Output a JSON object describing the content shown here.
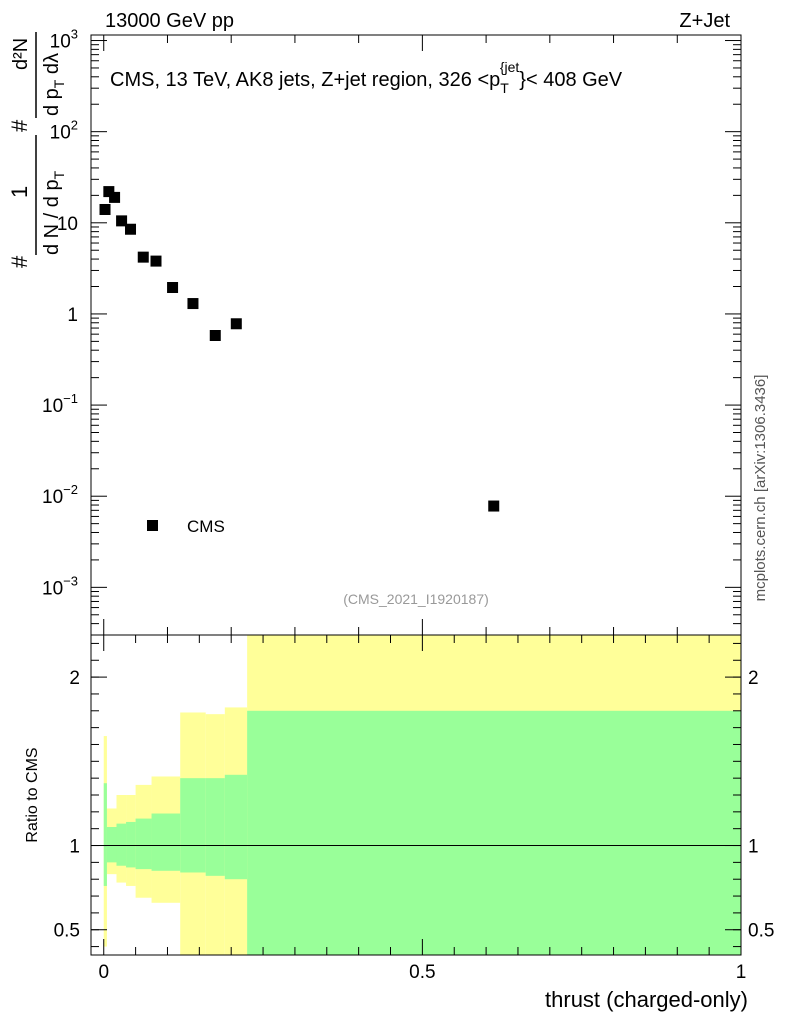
{
  "header": {
    "left": "13000 GeV pp",
    "right": "Z+Jet"
  },
  "watermark": "mcplots.cern.ch [arXiv:1306.3436]",
  "analysis_id": "(CMS_2021_I1920187)",
  "colors": {
    "band_outer": "#ffff99",
    "band_inner": "#99ff99",
    "marker": "#000000",
    "analysis_id": "#999999",
    "watermark": "#555555"
  },
  "chart_data": [
    {
      "id": "main",
      "type": "scatter",
      "title": "CMS, 13 TeV, AK8 jets, Z+jet region, 326 <p_T^{jet}< 408 GeV",
      "title_parts": {
        "prefix": "CMS, 13 TeV, AK8 jets, Z+jet region, 326 <p",
        "sub": "T",
        "sup": "{jet",
        "suffix": "}< 408 GeV"
      },
      "ylabel": "1/(dN/dp_T) d²N/(dp_T dλ)",
      "ylabel_parts": {
        "hash1": "#",
        "one": "1",
        "den": "d N / d p",
        "den_sub": "T",
        "hash2": "#",
        "num_top": "d²N",
        "num_bottom": "d p",
        "num_bottom_sub": "T",
        "num_bottom_tail": " dλ"
      },
      "yscale": "log",
      "ylim": [
        0.0003,
        1150
      ],
      "xlim": [
        -0.02,
        1.0
      ],
      "yticks": [
        {
          "value": 0.001,
          "base": "10",
          "exp": "−3"
        },
        {
          "value": 0.01,
          "base": "10",
          "exp": "−2"
        },
        {
          "value": 0.1,
          "base": "10",
          "exp": "−1"
        },
        {
          "value": 1,
          "base": "1",
          "exp": ""
        },
        {
          "value": 10,
          "base": "10",
          "exp": ""
        },
        {
          "value": 100,
          "base": "10",
          "exp": "2"
        },
        {
          "value": 1000,
          "base": "10",
          "exp": "3"
        }
      ],
      "legend": {
        "label": "CMS",
        "location": "lower-left"
      },
      "series": [
        {
          "name": "CMS",
          "marker": "square",
          "points": [
            {
              "x": 0.002,
              "y": 14.0
            },
            {
              "x": 0.008,
              "y": 22.0
            },
            {
              "x": 0.017,
              "y": 19.0
            },
            {
              "x": 0.028,
              "y": 10.5
            },
            {
              "x": 0.042,
              "y": 8.5
            },
            {
              "x": 0.062,
              "y": 4.2
            },
            {
              "x": 0.082,
              "y": 3.8
            },
            {
              "x": 0.108,
              "y": 1.95
            },
            {
              "x": 0.14,
              "y": 1.3
            },
            {
              "x": 0.175,
              "y": 0.58
            },
            {
              "x": 0.208,
              "y": 0.78
            },
            {
              "x": 0.612,
              "y": 0.0078
            }
          ]
        }
      ]
    },
    {
      "id": "ratio",
      "type": "area",
      "ylabel": "Ratio to CMS",
      "xlabel": "thrust (charged-only)",
      "xlim": [
        -0.02,
        1.0
      ],
      "ylim": [
        0.35,
        2.25
      ],
      "xticks": [
        {
          "value": 0,
          "label": "0"
        },
        {
          "value": 0.5,
          "label": "0.5"
        },
        {
          "value": 1,
          "label": "1"
        }
      ],
      "yticks": [
        {
          "value": 0.5,
          "label": "0.5"
        },
        {
          "value": 1,
          "label": "1"
        },
        {
          "value": 2,
          "label": "2"
        }
      ],
      "reference_line": 1.0,
      "bins": [
        {
          "x0": 0.0,
          "x1": 0.005,
          "inner": [
            0.76,
            1.37
          ],
          "outer": [
            0.4,
            1.65
          ]
        },
        {
          "x0": 0.005,
          "x1": 0.02,
          "inner": [
            0.9,
            1.11
          ],
          "outer": [
            0.83,
            1.22
          ]
        },
        {
          "x0": 0.02,
          "x1": 0.035,
          "inner": [
            0.88,
            1.13
          ],
          "outer": [
            0.78,
            1.3
          ]
        },
        {
          "x0": 0.035,
          "x1": 0.05,
          "inner": [
            0.87,
            1.14
          ],
          "outer": [
            0.76,
            1.3
          ]
        },
        {
          "x0": 0.05,
          "x1": 0.075,
          "inner": [
            0.86,
            1.16
          ],
          "outer": [
            0.69,
            1.36
          ]
        },
        {
          "x0": 0.075,
          "x1": 0.12,
          "inner": [
            0.85,
            1.19
          ],
          "outer": [
            0.66,
            1.41
          ]
        },
        {
          "x0": 0.12,
          "x1": 0.16,
          "inner": [
            0.84,
            1.4
          ],
          "outer": [
            0.35,
            1.79
          ]
        },
        {
          "x0": 0.16,
          "x1": 0.19,
          "inner": [
            0.82,
            1.4
          ],
          "outer": [
            0.35,
            1.78
          ]
        },
        {
          "x0": 0.19,
          "x1": 0.225,
          "inner": [
            0.8,
            1.42
          ],
          "outer": [
            0.35,
            1.82
          ]
        },
        {
          "x0": 0.225,
          "x1": 1.0,
          "inner": [
            0.35,
            1.8
          ],
          "outer": [
            0.35,
            2.25
          ]
        }
      ]
    }
  ]
}
